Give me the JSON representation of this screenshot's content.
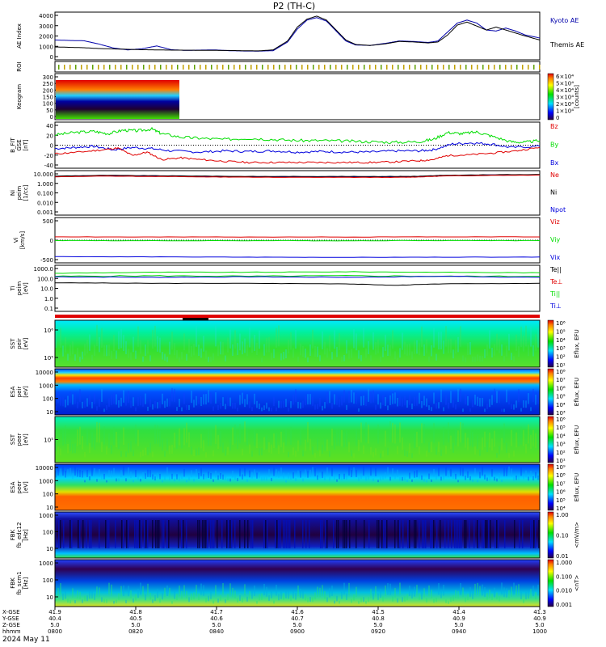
{
  "title": "P2 (TH-C)",
  "date_label": "2024 May 11",
  "time_axis": {
    "row_labels": [
      "X-GSE",
      "Y-GSE",
      "Z-GSE",
      "hhmm"
    ],
    "ticks": [
      {
        "x": "41.9",
        "y": "40.4",
        "z": "5.0",
        "t": "0800"
      },
      {
        "x": "41.8",
        "y": "40.5",
        "z": "5.0",
        "t": "0820"
      },
      {
        "x": "41.7",
        "y": "40.6",
        "z": "5.0",
        "t": "0840"
      },
      {
        "x": "41.6",
        "y": "40.7",
        "z": "5.0",
        "t": "0900"
      },
      {
        "x": "41.5",
        "y": "40.8",
        "z": "5.0",
        "t": "0920"
      },
      {
        "x": "41.4",
        "y": "40.9",
        "z": "5.0",
        "t": "0940"
      },
      {
        "x": "41.3",
        "y": "40.9",
        "z": "5.0",
        "t": "1000"
      }
    ]
  },
  "colors": {
    "red": "#e00000",
    "green": "#00dd00",
    "blue": "#0000dd",
    "black": "#000000",
    "kyoto_blue": "#0000aa"
  },
  "panels": {
    "ae": {
      "ylabel": "AE Index",
      "yticks": [
        "4000",
        "3000",
        "2000",
        "1000",
        "0"
      ],
      "ylim": [
        -500,
        4300
      ],
      "legend": [
        "Kyoto AE",
        "Themis AE"
      ],
      "kyoto": [
        [
          0,
          1500
        ],
        [
          0.03,
          1450
        ],
        [
          0.06,
          1420
        ],
        [
          0.09,
          1100
        ],
        [
          0.12,
          700
        ],
        [
          0.15,
          500
        ],
        [
          0.18,
          620
        ],
        [
          0.21,
          900
        ],
        [
          0.24,
          520
        ],
        [
          0.27,
          450
        ],
        [
          0.3,
          480
        ],
        [
          0.33,
          500
        ],
        [
          0.36,
          420
        ],
        [
          0.39,
          390
        ],
        [
          0.42,
          380
        ],
        [
          0.45,
          420
        ],
        [
          0.48,
          1300
        ],
        [
          0.5,
          2600
        ],
        [
          0.52,
          3500
        ],
        [
          0.54,
          3750
        ],
        [
          0.56,
          3400
        ],
        [
          0.58,
          2400
        ],
        [
          0.6,
          1400
        ],
        [
          0.62,
          1000
        ],
        [
          0.65,
          950
        ],
        [
          0.68,
          1150
        ],
        [
          0.71,
          1400
        ],
        [
          0.74,
          1350
        ],
        [
          0.77,
          1250
        ],
        [
          0.79,
          1400
        ],
        [
          0.81,
          2300
        ],
        [
          0.83,
          3200
        ],
        [
          0.85,
          3500
        ],
        [
          0.87,
          3200
        ],
        [
          0.89,
          2500
        ],
        [
          0.91,
          2400
        ],
        [
          0.93,
          2700
        ],
        [
          0.95,
          2400
        ],
        [
          0.97,
          2000
        ],
        [
          1,
          1700
        ]
      ],
      "themis": [
        [
          0,
          800
        ],
        [
          0.03,
          760
        ],
        [
          0.06,
          720
        ],
        [
          0.09,
          640
        ],
        [
          0.12,
          600
        ],
        [
          0.15,
          560
        ],
        [
          0.18,
          520
        ],
        [
          0.21,
          500
        ],
        [
          0.24,
          480
        ],
        [
          0.27,
          470
        ],
        [
          0.3,
          460
        ],
        [
          0.33,
          450
        ],
        [
          0.36,
          440
        ],
        [
          0.39,
          420
        ],
        [
          0.42,
          400
        ],
        [
          0.45,
          500
        ],
        [
          0.48,
          1400
        ],
        [
          0.5,
          2800
        ],
        [
          0.52,
          3600
        ],
        [
          0.54,
          3900
        ],
        [
          0.56,
          3500
        ],
        [
          0.58,
          2500
        ],
        [
          0.6,
          1500
        ],
        [
          0.62,
          1050
        ],
        [
          0.65,
          950
        ],
        [
          0.68,
          1100
        ],
        [
          0.71,
          1350
        ],
        [
          0.74,
          1300
        ],
        [
          0.77,
          1200
        ],
        [
          0.79,
          1300
        ],
        [
          0.81,
          2000
        ],
        [
          0.83,
          3000
        ],
        [
          0.85,
          3300
        ],
        [
          0.87,
          2900
        ],
        [
          0.89,
          2500
        ],
        [
          0.91,
          2800
        ],
        [
          0.93,
          2500
        ],
        [
          0.95,
          2200
        ],
        [
          0.97,
          1900
        ],
        [
          1,
          1500
        ]
      ]
    },
    "roi": {
      "ylabel": "ROI"
    },
    "keogram": {
      "ylabel": "Keogram",
      "yticks": [
        "300",
        "250",
        "200",
        "150",
        "100",
        "50",
        "0"
      ],
      "ylim": [
        0,
        300
      ],
      "data_end": 0.255,
      "cbar_label": "[counts]",
      "cbar_ticks": [
        "6×10⁴",
        "5×10⁴",
        "4×10⁴",
        "3×10⁴",
        "2×10⁴",
        "1×10⁴",
        "0"
      ]
    },
    "bfield": {
      "ylabel": "B_FIT",
      "ylabel2": "GSE",
      "ylabel3": "[nT]",
      "yticks": [
        "40",
        "20",
        "0",
        "-20",
        "-40"
      ],
      "ylim": [
        -40,
        40
      ],
      "legend": [
        "Bz",
        "By",
        "Bx"
      ],
      "bz": [
        [
          0,
          -15
        ],
        [
          0.05,
          -12
        ],
        [
          0.1,
          -8
        ],
        [
          0.13,
          -5
        ],
        [
          0.16,
          -18
        ],
        [
          0.19,
          -12
        ],
        [
          0.22,
          -25
        ],
        [
          0.26,
          -22
        ],
        [
          0.3,
          -25
        ],
        [
          0.35,
          -28
        ],
        [
          0.4,
          -30
        ],
        [
          0.45,
          -30
        ],
        [
          0.5,
          -30
        ],
        [
          0.55,
          -30
        ],
        [
          0.6,
          -30
        ],
        [
          0.65,
          -30
        ],
        [
          0.7,
          -29
        ],
        [
          0.75,
          -27
        ],
        [
          0.78,
          -25
        ],
        [
          0.81,
          -18
        ],
        [
          0.85,
          -17
        ],
        [
          0.9,
          -14
        ],
        [
          0.95,
          -10
        ],
        [
          1,
          -4
        ]
      ],
      "by": [
        [
          0,
          18
        ],
        [
          0.04,
          22
        ],
        [
          0.08,
          24
        ],
        [
          0.11,
          20
        ],
        [
          0.14,
          26
        ],
        [
          0.17,
          25
        ],
        [
          0.2,
          28
        ],
        [
          0.22,
          20
        ],
        [
          0.26,
          14
        ],
        [
          0.3,
          12
        ],
        [
          0.35,
          10
        ],
        [
          0.4,
          12
        ],
        [
          0.45,
          10
        ],
        [
          0.5,
          8
        ],
        [
          0.55,
          8
        ],
        [
          0.6,
          7
        ],
        [
          0.65,
          6
        ],
        [
          0.7,
          5
        ],
        [
          0.75,
          6
        ],
        [
          0.78,
          10
        ],
        [
          0.81,
          22
        ],
        [
          0.84,
          20
        ],
        [
          0.87,
          23
        ],
        [
          0.9,
          16
        ],
        [
          0.94,
          6
        ],
        [
          0.97,
          5
        ],
        [
          1,
          8
        ]
      ],
      "bx": [
        [
          0,
          -6
        ],
        [
          0.04,
          -4
        ],
        [
          0.08,
          -2
        ],
        [
          0.12,
          -8
        ],
        [
          0.16,
          -4
        ],
        [
          0.2,
          -6
        ],
        [
          0.24,
          -10
        ],
        [
          0.3,
          -12
        ],
        [
          0.35,
          -10
        ],
        [
          0.4,
          -11
        ],
        [
          0.45,
          -10
        ],
        [
          0.5,
          -12
        ],
        [
          0.55,
          -11
        ],
        [
          0.6,
          -12
        ],
        [
          0.65,
          -12
        ],
        [
          0.7,
          -10
        ],
        [
          0.75,
          -10
        ],
        [
          0.78,
          -8
        ],
        [
          0.82,
          2
        ],
        [
          0.86,
          4
        ],
        [
          0.9,
          2
        ],
        [
          0.94,
          -4
        ],
        [
          1,
          -2
        ]
      ]
    },
    "density": {
      "ylabel": "Ni",
      "ylabel2": "peim",
      "ylabel3": "[1/cc]",
      "yticks": [
        "10.000",
        "1.000",
        "0.100",
        "0.010",
        "0.001"
      ],
      "ylim_log": [
        -3.3,
        1.3
      ],
      "legend": [
        "Ne",
        "Ni",
        "Npot"
      ],
      "ne": [
        [
          0,
          4.5
        ],
        [
          0.1,
          5.5
        ],
        [
          0.2,
          5.0
        ],
        [
          0.3,
          4.5
        ],
        [
          0.4,
          4.2
        ],
        [
          0.5,
          4.0
        ],
        [
          0.6,
          4.0
        ],
        [
          0.7,
          4.0
        ],
        [
          0.75,
          4.4
        ],
        [
          0.8,
          5.5
        ],
        [
          0.9,
          6.5
        ],
        [
          1,
          7.0
        ]
      ],
      "ni": [
        [
          0,
          5.5
        ],
        [
          0.1,
          6.5
        ],
        [
          0.2,
          6.0
        ],
        [
          0.3,
          5.5
        ],
        [
          0.4,
          5.0
        ],
        [
          0.5,
          5.0
        ],
        [
          0.6,
          5.0
        ],
        [
          0.7,
          5.0
        ],
        [
          0.75,
          5.2
        ],
        [
          0.8,
          6.5
        ],
        [
          0.9,
          7.5
        ],
        [
          1,
          8.0
        ]
      ],
      "npot": [
        [
          0,
          5.0
        ],
        [
          0.1,
          6.0
        ],
        [
          0.2,
          5.5
        ],
        [
          0.3,
          5.0
        ],
        [
          0.4,
          4.6
        ],
        [
          0.5,
          4.5
        ],
        [
          0.6,
          4.5
        ],
        [
          0.7,
          4.5
        ],
        [
          0.75,
          4.8
        ],
        [
          0.8,
          6.0
        ],
        [
          0.9,
          7.0
        ],
        [
          1,
          7.5
        ]
      ]
    },
    "velocity": {
      "ylabel": "Vi",
      "ylabel2": "[km/s]",
      "yticks": [
        "500",
        "0",
        "-500"
      ],
      "ylim": [
        -800,
        800
      ],
      "legend": [
        "Viz",
        "Viy",
        "Vix"
      ],
      "viz": [
        [
          0,
          120
        ],
        [
          0.2,
          110
        ],
        [
          0.4,
          115
        ],
        [
          0.6,
          110
        ],
        [
          0.8,
          120
        ],
        [
          1,
          115
        ]
      ],
      "viy": [
        [
          0,
          -10
        ],
        [
          0.2,
          -20
        ],
        [
          0.4,
          -15
        ],
        [
          0.6,
          -20
        ],
        [
          0.8,
          -10
        ],
        [
          1,
          -15
        ]
      ],
      "vix": [
        [
          0,
          -580
        ],
        [
          0.2,
          -590
        ],
        [
          0.4,
          -600
        ],
        [
          0.6,
          -605
        ],
        [
          0.8,
          -600
        ],
        [
          1,
          -595
        ]
      ]
    },
    "temperature": {
      "ylabel": "Ti",
      "ylabel2": "peim",
      "ylabel3": "[eV]",
      "yticks": [
        "1000.0",
        "100.0",
        "10.0",
        "1.0",
        "0.1"
      ],
      "ylim_log": [
        -1.2,
        3.4
      ],
      "legend": [
        "Te||",
        "Te⊥",
        "Ti||",
        "Ti⊥"
      ],
      "te_par": [
        [
          0,
          1.65
        ],
        [
          0.2,
          1.6
        ],
        [
          0.4,
          1.6
        ],
        [
          0.6,
          1.55
        ],
        [
          0.7,
          1.4
        ],
        [
          0.8,
          1.55
        ],
        [
          1,
          1.6
        ]
      ],
      "te_perp": [
        [
          0,
          2.25
        ],
        [
          0.2,
          2.2
        ],
        [
          0.4,
          2.25
        ],
        [
          0.6,
          2.2
        ],
        [
          0.8,
          2.3
        ],
        [
          1,
          2.2
        ]
      ],
      "ti_par": [
        [
          0,
          2.3
        ],
        [
          0.2,
          2.35
        ],
        [
          0.4,
          2.3
        ],
        [
          0.6,
          2.35
        ],
        [
          0.8,
          2.3
        ],
        [
          1,
          2.3
        ]
      ],
      "ti_perp": [
        [
          0,
          2.6
        ],
        [
          0.2,
          2.7
        ],
        [
          0.4,
          2.7
        ],
        [
          0.6,
          2.75
        ],
        [
          0.8,
          2.7
        ],
        [
          1,
          2.65
        ]
      ]
    },
    "sst_i": {
      "ylabel": "SST",
      "ylabel2": "peir",
      "ylabel3": "[eV]",
      "yticks": [
        "10⁶",
        "10⁵"
      ],
      "cbar_label": "Eflux, EFU",
      "cbar_ticks": [
        "10⁶",
        "10⁵",
        "10⁴",
        "10³",
        "10²",
        "10¹"
      ]
    },
    "esa_i": {
      "ylabel": "ESA",
      "ylabel2": "peir",
      "ylabel3": "[eV]",
      "yticks": [
        "10000",
        "1000",
        "100",
        "10"
      ],
      "cbar_label": "Eflux, EFU",
      "cbar_ticks": [
        "10⁸",
        "10⁷",
        "10⁶",
        "10⁵",
        "10⁴",
        "10³"
      ]
    },
    "sst_e": {
      "ylabel": "SST",
      "ylabel2": "peer",
      "ylabel3": "[eV]",
      "yticks": [
        "10⁵"
      ],
      "cbar_label": "Eflux, EFU",
      "cbar_ticks": [
        "10⁶",
        "10⁵",
        "10⁴",
        "10³",
        "10²",
        "10¹"
      ]
    },
    "esa_e": {
      "ylabel": "ESA",
      "ylabel2": "peer",
      "ylabel3": "[eV]",
      "yticks": [
        "10000",
        "1000",
        "100",
        "10"
      ],
      "cbar_label": "Eflux, EFU",
      "cbar_ticks": [
        "10⁹",
        "10⁸",
        "10⁷",
        "10⁶",
        "10⁵",
        "10⁴"
      ]
    },
    "fbk_e": {
      "ylabel": "FBK",
      "ylabel2": "fb_edc12",
      "ylabel3": "[Hz]",
      "yticks": [
        "1000",
        "100",
        "10"
      ],
      "cbar_label": "<mV/m>",
      "cbar_ticks": [
        "1.00",
        "0.10",
        "0.01"
      ]
    },
    "fbk_b": {
      "ylabel": "FBK",
      "ylabel2": "fb_scm1",
      "ylabel3": "[Hz]",
      "yticks": [
        "1000",
        "100",
        "10"
      ],
      "cbar_label": "<nT>",
      "cbar_ticks": [
        "1.000",
        "0.100",
        "0.010",
        "0.001"
      ]
    }
  }
}
